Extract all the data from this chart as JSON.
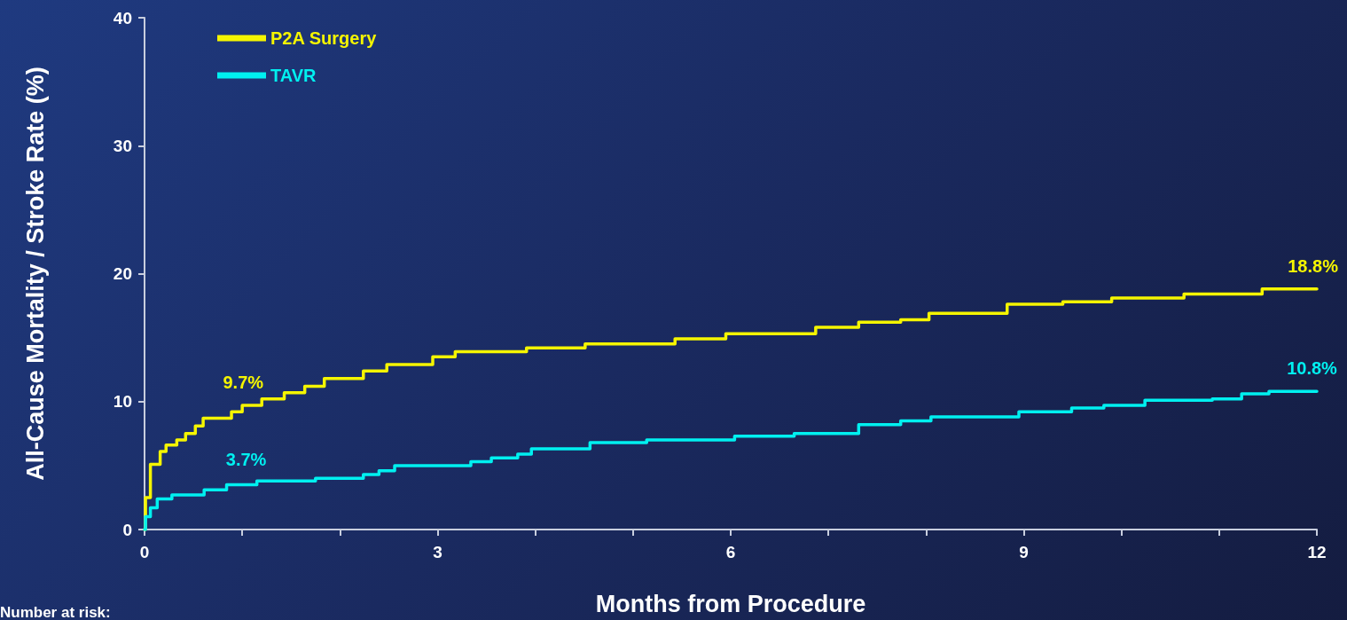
{
  "chart_data": {
    "type": "step",
    "xlabel": "Months from Procedure",
    "ylabel": "All-Cause Mortality / Stroke Rate (%)",
    "xlim": [
      0,
      12
    ],
    "xticks": [
      0,
      {
        "value": 1,
        "label": null
      },
      {
        "value": 2,
        "label": null
      },
      3,
      {
        "value": 4,
        "label": null
      },
      {
        "value": 5,
        "label": null
      },
      6,
      {
        "value": 7,
        "label": null
      },
      {
        "value": 8,
        "label": null
      },
      9,
      {
        "value": 10,
        "label": null
      },
      {
        "value": 11,
        "label": null
      },
      12
    ],
    "ylim": [
      0,
      40
    ],
    "yticks": [
      0,
      10,
      20,
      30,
      40
    ],
    "grid": false,
    "legend": "top left",
    "line_style": "solid",
    "marker": "none",
    "series": [
      {
        "name": "P2A Surgery",
        "color": "#f5f500",
        "x": [
          0,
          0.01,
          0.06,
          0.16,
          0.22,
          0.33,
          0.42,
          0.52,
          0.6,
          0.89,
          1.0,
          1.2,
          1.43,
          1.64,
          1.84,
          2.24,
          2.48,
          2.95,
          3.18,
          3.91,
          4.51,
          5.43,
          5.95,
          6.87,
          7.31,
          7.74,
          8.03,
          8.83,
          9.4,
          9.9,
          10.64,
          11.44,
          12
        ],
        "values": [
          0,
          2.5,
          5.1,
          6.1,
          6.6,
          7.0,
          7.5,
          8.1,
          8.7,
          9.2,
          9.7,
          10.2,
          10.7,
          11.2,
          11.8,
          12.4,
          12.9,
          13.5,
          13.9,
          14.2,
          14.5,
          14.9,
          15.3,
          15.8,
          16.2,
          16.4,
          16.9,
          17.6,
          17.8,
          18.1,
          18.4,
          18.8,
          18.8
        ]
      },
      {
        "name": "TAVR",
        "color": "#00f0f0",
        "x": [
          0,
          0.01,
          0.06,
          0.13,
          0.28,
          0.61,
          0.84,
          1.15,
          1.75,
          2.24,
          2.4,
          2.56,
          3.34,
          3.55,
          3.82,
          3.96,
          4.56,
          5.14,
          6.04,
          6.65,
          7.31,
          7.74,
          8.05,
          8.95,
          9.49,
          9.82,
          10.24,
          10.93,
          11.23,
          11.51,
          12
        ],
        "values": [
          0,
          1.0,
          1.7,
          2.4,
          2.7,
          3.1,
          3.5,
          3.8,
          4.0,
          4.3,
          4.6,
          5.0,
          5.3,
          5.6,
          5.9,
          6.3,
          6.8,
          7.0,
          7.3,
          7.5,
          8.2,
          8.5,
          8.8,
          9.2,
          9.5,
          9.7,
          10.1,
          10.2,
          10.6,
          10.8,
          10.8
        ]
      }
    ],
    "annotations": [
      {
        "text": "9.7%",
        "x": 1.01,
        "y": 9.7
      },
      {
        "text": "3.7%",
        "x": 1.04,
        "y": 3.7
      },
      {
        "text": "18.8%",
        "x": 11.96,
        "y": 18.8
      },
      {
        "text": "10.8%",
        "x": 11.95,
        "y": 10.8
      },
      "Number at risk:"
    ]
  }
}
